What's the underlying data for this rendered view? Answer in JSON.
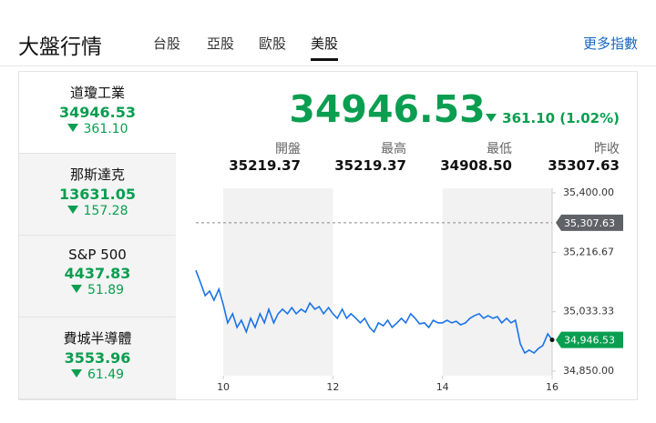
{
  "header": {
    "title": "大盤行情",
    "tabs": [
      "台股",
      "亞股",
      "歐股",
      "美股"
    ],
    "active_tab": 3,
    "more_link": "更多指數"
  },
  "indices": [
    {
      "name": "道瓊工業",
      "value": "34946.53",
      "change": "361.10"
    },
    {
      "name": "那斯達克",
      "value": "13631.05",
      "change": "157.28"
    },
    {
      "name": "S&P 500",
      "value": "4437.83",
      "change": "51.89"
    },
    {
      "name": "費城半導體",
      "value": "3553.96",
      "change": "61.49"
    }
  ],
  "quote": {
    "value": "34946.53",
    "change": "361.10 (1.02%)",
    "stats": [
      {
        "label": "開盤",
        "value": "35219.37"
      },
      {
        "label": "最高",
        "value": "35219.37"
      },
      {
        "label": "最低",
        "value": "34908.50"
      },
      {
        "label": "昨收",
        "value": "35307.63"
      }
    ]
  },
  "chart_data": {
    "type": "line",
    "color": "#1a73e8",
    "x": [
      9.5,
      9.58,
      9.67,
      9.75,
      9.83,
      9.92,
      10,
      10.08,
      10.17,
      10.25,
      10.33,
      10.42,
      10.5,
      10.58,
      10.67,
      10.75,
      10.83,
      10.92,
      11,
      11.08,
      11.17,
      11.25,
      11.33,
      11.42,
      11.5,
      11.58,
      11.67,
      11.75,
      11.83,
      11.92,
      12,
      12.08,
      12.17,
      12.25,
      12.33,
      12.42,
      12.5,
      12.58,
      12.67,
      12.75,
      12.83,
      12.92,
      13,
      13.08,
      13.17,
      13.25,
      13.33,
      13.42,
      13.5,
      13.58,
      13.67,
      13.75,
      13.83,
      13.92,
      14,
      14.08,
      14.17,
      14.25,
      14.33,
      14.42,
      14.5,
      14.58,
      14.67,
      14.75,
      14.83,
      14.92,
      15,
      15.08,
      15.17,
      15.25,
      15.33,
      15.42,
      15.5,
      15.58,
      15.67,
      15.75,
      15.83,
      15.92,
      16
    ],
    "values": [
      35161,
      35125,
      35083,
      35097,
      35069,
      35103,
      35055,
      34999,
      35027,
      34985,
      35007,
      34971,
      35013,
      34985,
      35027,
      34999,
      35041,
      34999,
      35027,
      35041,
      35027,
      35046,
      35027,
      35041,
      35032,
      35060,
      35041,
      35049,
      35027,
      35046,
      35027,
      35013,
      35041,
      35013,
      35027,
      35013,
      34999,
      35013,
      34985,
      34971,
      34999,
      34990,
      35007,
      34985,
      34999,
      35013,
      34999,
      35027,
      35013,
      34996,
      34999,
      34985,
      35007,
      34999,
      34999,
      35007,
      34999,
      35004,
      34993,
      34999,
      35013,
      35021,
      35027,
      35013,
      35021,
      35013,
      35018,
      34999,
      35013,
      34999,
      35007,
      34934,
      34906,
      34915,
      34906,
      34920,
      34929,
      34965,
      34946.53
    ],
    "xlim": [
      9.5,
      16
    ],
    "xticks": [
      10,
      12,
      14,
      16
    ],
    "ylim": [
      34850,
      35400
    ],
    "yticks": [
      {
        "value": 35400,
        "label": "35,400.00"
      },
      {
        "value": 35216.67,
        "label": "35,216.67"
      },
      {
        "value": 35033.33,
        "label": "35,033.33"
      },
      {
        "value": 34850,
        "label": "34,850.00"
      }
    ],
    "reference_line": {
      "value": 35307.63,
      "label": "35,307.63"
    },
    "last_label": "34,946.53"
  }
}
